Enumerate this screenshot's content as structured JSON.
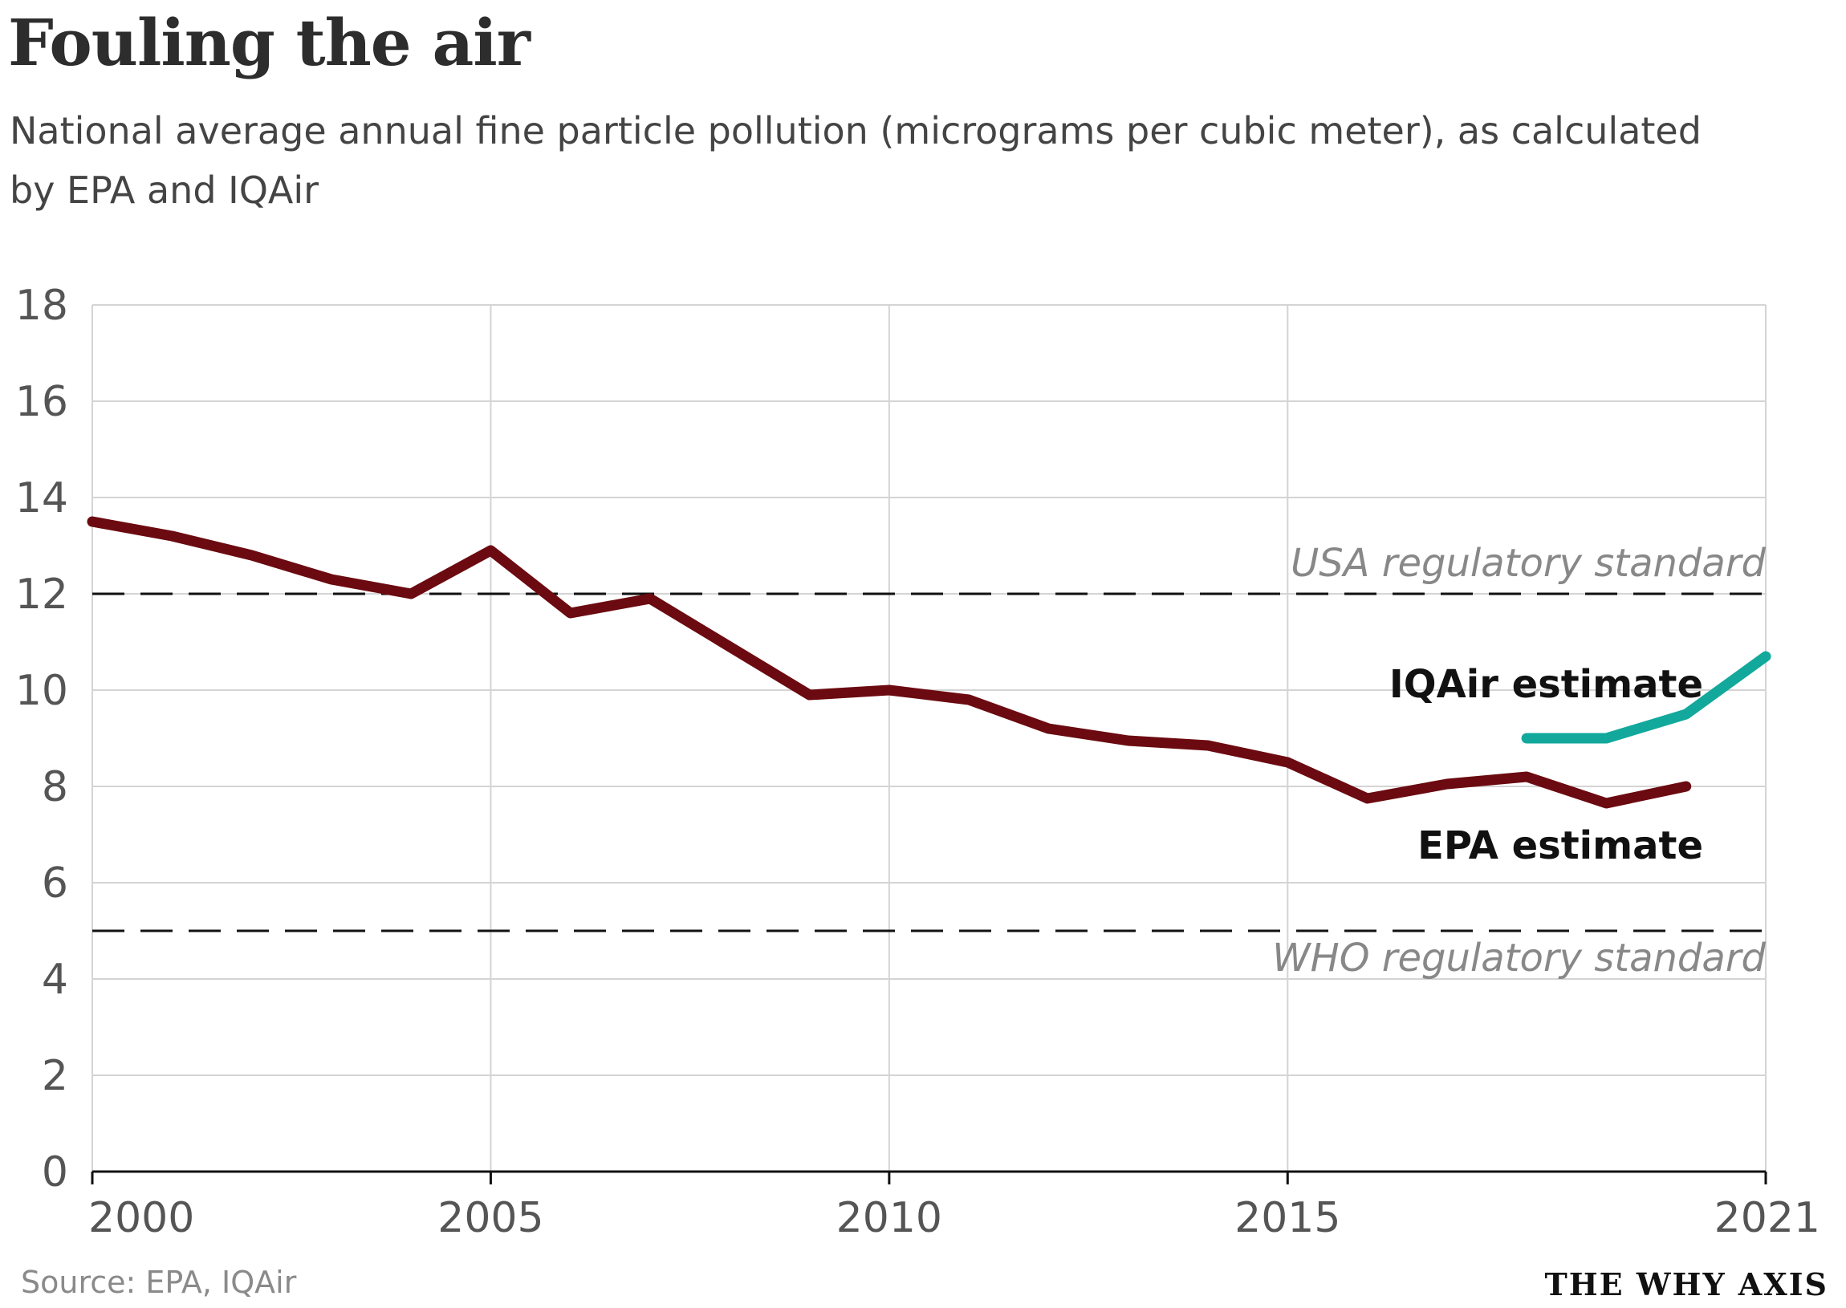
{
  "title": "Fouling the air",
  "subtitle": "National average annual fine particle pollution (micrograms per cubic meter), as calculated by EPA and IQAir",
  "source": "Source: EPA, IQAir",
  "brand": "THE WHY AXIS",
  "colors": {
    "epa": "#6b0a10",
    "iqair": "#12a89c",
    "grid": "#d4d4d4",
    "axis": "#111111",
    "tick": "#555555",
    "ref_label": "#888888"
  },
  "chart_data": {
    "type": "line",
    "title": "Fouling the air",
    "xlabel": "",
    "ylabel": "",
    "xlim": [
      2000,
      2021
    ],
    "ylim": [
      0,
      18
    ],
    "grid": true,
    "x_ticks": [
      2000,
      2005,
      2010,
      2015,
      2021
    ],
    "y_ticks": [
      0,
      2,
      4,
      6,
      8,
      10,
      12,
      14,
      16,
      18
    ],
    "series": [
      {
        "name": "EPA estimate",
        "x": [
          2000,
          2001,
          2002,
          2003,
          2004,
          2005,
          2006,
          2007,
          2008,
          2009,
          2010,
          2011,
          2012,
          2013,
          2014,
          2015,
          2016,
          2017,
          2018,
          2019,
          2020
        ],
        "values": [
          13.5,
          13.2,
          12.8,
          12.3,
          12.0,
          12.9,
          11.6,
          11.9,
          10.9,
          9.9,
          10.0,
          9.8,
          9.2,
          8.95,
          8.85,
          8.5,
          7.75,
          8.05,
          8.2,
          7.65,
          8.0
        ]
      },
      {
        "name": "IQAir estimate",
        "x": [
          2018,
          2019,
          2020,
          2021
        ],
        "values": [
          9.0,
          9.0,
          9.5,
          10.7
        ]
      }
    ],
    "reference_lines": [
      {
        "label": "USA regulatory standard",
        "value": 12
      },
      {
        "label": "WHO regulatory standard",
        "value": 5
      }
    ]
  }
}
